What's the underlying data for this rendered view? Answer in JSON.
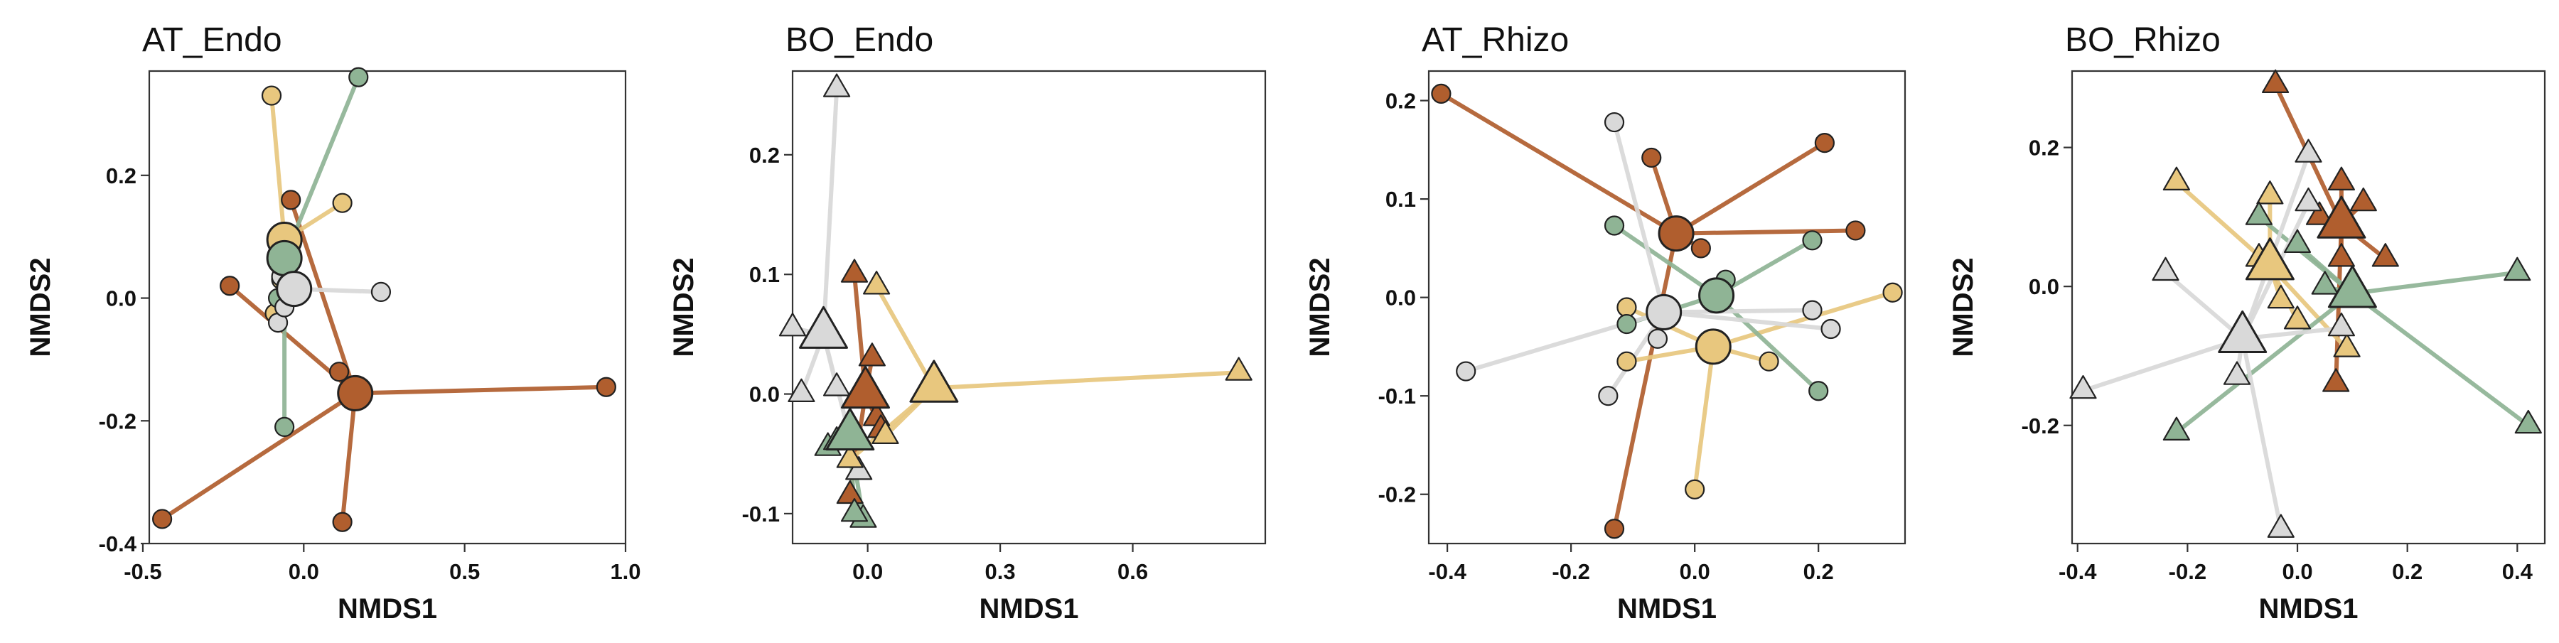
{
  "colors": {
    "c1": "#b05e2e",
    "c2": "#e8c77e",
    "c3": "#8fb495",
    "c4": "#d9d9d9"
  },
  "chart_data": [
    {
      "type": "scatter",
      "title": "AT_Endo",
      "xlabel": "NMDS1",
      "ylabel": "NMDS2",
      "marker": "circle",
      "xlim": [
        -0.48,
        1.0
      ],
      "ylim": [
        -0.4,
        0.37
      ],
      "xticks": [
        -0.5,
        0.0,
        0.5,
        1.0
      ],
      "xtick_labels": [
        "-0.5",
        "0.0",
        "0.5",
        "1.0"
      ],
      "yticks": [
        -0.4,
        -0.2,
        0.0,
        0.2
      ],
      "ytick_labels": [
        "-0.4",
        "-0.2",
        "0.0",
        "0.2"
      ],
      "grid": false,
      "legend": "none",
      "series": [
        {
          "color": "c1",
          "centroid": [
            0.16,
            -0.155
          ],
          "points": [
            [
              0.94,
              -0.145
            ],
            [
              -0.44,
              -0.36
            ],
            [
              0.12,
              -0.365
            ],
            [
              -0.23,
              0.02
            ],
            [
              0.11,
              -0.12
            ],
            [
              -0.04,
              0.16
            ]
          ]
        },
        {
          "color": "c2",
          "centroid": [
            -0.06,
            0.095
          ],
          "points": [
            [
              -0.1,
              0.33
            ],
            [
              0.12,
              0.155
            ],
            [
              -0.07,
              0.03
            ],
            [
              -0.09,
              -0.025
            ]
          ]
        },
        {
          "color": "c3",
          "centroid": [
            -0.06,
            0.065
          ],
          "points": [
            [
              0.17,
              0.36
            ],
            [
              -0.06,
              -0.21
            ],
            [
              -0.08,
              0.0
            ],
            [
              -0.07,
              0.06
            ]
          ]
        },
        {
          "color": "c4",
          "centroid": [
            -0.03,
            0.015
          ],
          "points": [
            [
              0.24,
              0.01
            ],
            [
              -0.08,
              -0.04
            ],
            [
              -0.07,
              0.035
            ],
            [
              -0.06,
              -0.015
            ]
          ]
        }
      ]
    },
    {
      "type": "scatter",
      "title": "BO_Endo",
      "xlabel": "NMDS1",
      "ylabel": "NMDS2",
      "marker": "triangle",
      "xlim": [
        -0.17,
        0.9
      ],
      "ylim": [
        -0.125,
        0.27
      ],
      "xticks": [
        0.0,
        0.3,
        0.6
      ],
      "xtick_labels": [
        "0.0",
        "0.3",
        "0.6"
      ],
      "yticks": [
        -0.1,
        0.0,
        0.1,
        0.2
      ],
      "ytick_labels": [
        "-0.1",
        "0.0",
        "0.1",
        "0.2"
      ],
      "grid": false,
      "legend": "none",
      "series": [
        {
          "color": "c4",
          "centroid": [
            -0.1,
            0.05
          ],
          "points": [
            [
              -0.07,
              0.255
            ],
            [
              -0.17,
              0.055
            ],
            [
              -0.15,
              0.0
            ],
            [
              -0.07,
              0.005
            ],
            [
              -0.02,
              -0.065
            ]
          ]
        },
        {
          "color": "c1",
          "centroid": [
            -0.005,
            0.0
          ],
          "points": [
            [
              -0.03,
              0.1
            ],
            [
              0.01,
              0.03
            ],
            [
              0.02,
              -0.02
            ],
            [
              -0.04,
              -0.085
            ],
            [
              0.03,
              -0.03
            ]
          ]
        },
        {
          "color": "c2",
          "centroid": [
            0.15,
            0.005
          ],
          "points": [
            [
              0.84,
              0.018
            ],
            [
              0.02,
              0.09
            ],
            [
              0.04,
              -0.035
            ],
            [
              -0.04,
              -0.055
            ]
          ]
        },
        {
          "color": "c3",
          "centroid": [
            -0.04,
            -0.035
          ],
          "points": [
            [
              -0.01,
              -0.105
            ],
            [
              -0.03,
              -0.1
            ],
            [
              -0.09,
              -0.045
            ],
            [
              -0.07,
              -0.04
            ]
          ]
        }
      ]
    },
    {
      "type": "scatter",
      "title": "AT_Rhizo",
      "xlabel": "NMDS1",
      "ylabel": "NMDS2",
      "marker": "circle",
      "xlim": [
        -0.43,
        0.34
      ],
      "ylim": [
        -0.25,
        0.23
      ],
      "xticks": [
        -0.4,
        -0.2,
        0.0,
        0.2
      ],
      "xtick_labels": [
        "-0.4",
        "-0.2",
        "0.0",
        "0.2"
      ],
      "yticks": [
        -0.2,
        -0.1,
        0.0,
        0.1,
        0.2
      ],
      "ytick_labels": [
        "-0.2",
        "-0.1",
        "0.0",
        "0.1",
        "0.2"
      ],
      "grid": false,
      "legend": "none",
      "series": [
        {
          "color": "c1",
          "centroid": [
            -0.03,
            0.065
          ],
          "points": [
            [
              -0.41,
              0.207
            ],
            [
              0.21,
              0.157
            ],
            [
              0.26,
              0.068
            ],
            [
              -0.07,
              0.142
            ],
            [
              0.01,
              0.05
            ],
            [
              -0.13,
              -0.235
            ]
          ]
        },
        {
          "color": "c2",
          "centroid": [
            0.03,
            -0.05
          ],
          "points": [
            [
              0.32,
              0.005
            ],
            [
              0.12,
              -0.065
            ],
            [
              -0.11,
              -0.065
            ],
            [
              0.0,
              -0.195
            ],
            [
              -0.11,
              -0.01
            ]
          ]
        },
        {
          "color": "c3",
          "centroid": [
            0.035,
            0.002
          ],
          "points": [
            [
              -0.13,
              0.073
            ],
            [
              0.19,
              0.058
            ],
            [
              0.2,
              -0.095
            ],
            [
              0.05,
              0.018
            ],
            [
              -0.11,
              -0.027
            ]
          ]
        },
        {
          "color": "c4",
          "centroid": [
            -0.05,
            -0.015
          ],
          "points": [
            [
              -0.37,
              -0.075
            ],
            [
              -0.13,
              0.178
            ],
            [
              0.22,
              -0.032
            ],
            [
              0.19,
              -0.013
            ],
            [
              -0.14,
              -0.1
            ],
            [
              -0.06,
              -0.042
            ]
          ]
        }
      ]
    },
    {
      "type": "scatter",
      "title": "BO_Rhizo",
      "xlabel": "NMDS1",
      "ylabel": "NMDS2",
      "marker": "triangle",
      "xlim": [
        -0.41,
        0.45
      ],
      "ylim": [
        -0.37,
        0.31
      ],
      "xticks": [
        -0.4,
        -0.2,
        0.0,
        0.2,
        0.4
      ],
      "xtick_labels": [
        "-0.4",
        "-0.2",
        "0.0",
        "0.2",
        "0.4"
      ],
      "yticks": [
        -0.2,
        0.0,
        0.2
      ],
      "ytick_labels": [
        "-0.2",
        "0.0",
        "0.2"
      ],
      "grid": false,
      "legend": "none",
      "series": [
        {
          "color": "c1",
          "centroid": [
            0.08,
            0.09
          ],
          "points": [
            [
              -0.04,
              0.29
            ],
            [
              0.08,
              0.15
            ],
            [
              0.12,
              0.12
            ],
            [
              0.16,
              0.04
            ],
            [
              0.07,
              -0.14
            ],
            [
              0.08,
              0.04
            ],
            [
              0.04,
              0.1
            ]
          ]
        },
        {
          "color": "c2",
          "centroid": [
            -0.05,
            0.03
          ],
          "points": [
            [
              -0.22,
              0.15
            ],
            [
              -0.05,
              0.13
            ],
            [
              -0.07,
              0.04
            ],
            [
              0.09,
              -0.09
            ],
            [
              0.0,
              -0.05
            ],
            [
              -0.03,
              -0.02
            ]
          ]
        },
        {
          "color": "c3",
          "centroid": [
            0.1,
            -0.01
          ],
          "points": [
            [
              0.42,
              -0.2
            ],
            [
              0.4,
              0.02
            ],
            [
              -0.22,
              -0.21
            ],
            [
              -0.07,
              0.1
            ],
            [
              0.0,
              0.06
            ],
            [
              0.05,
              0.0
            ]
          ]
        },
        {
          "color": "c4",
          "centroid": [
            -0.1,
            -0.075
          ],
          "points": [
            [
              -0.39,
              -0.15
            ],
            [
              -0.03,
              -0.35
            ],
            [
              0.02,
              0.19
            ],
            [
              -0.24,
              0.02
            ],
            [
              0.08,
              -0.06
            ],
            [
              -0.11,
              -0.13
            ],
            [
              0.02,
              0.12
            ]
          ]
        }
      ]
    }
  ]
}
